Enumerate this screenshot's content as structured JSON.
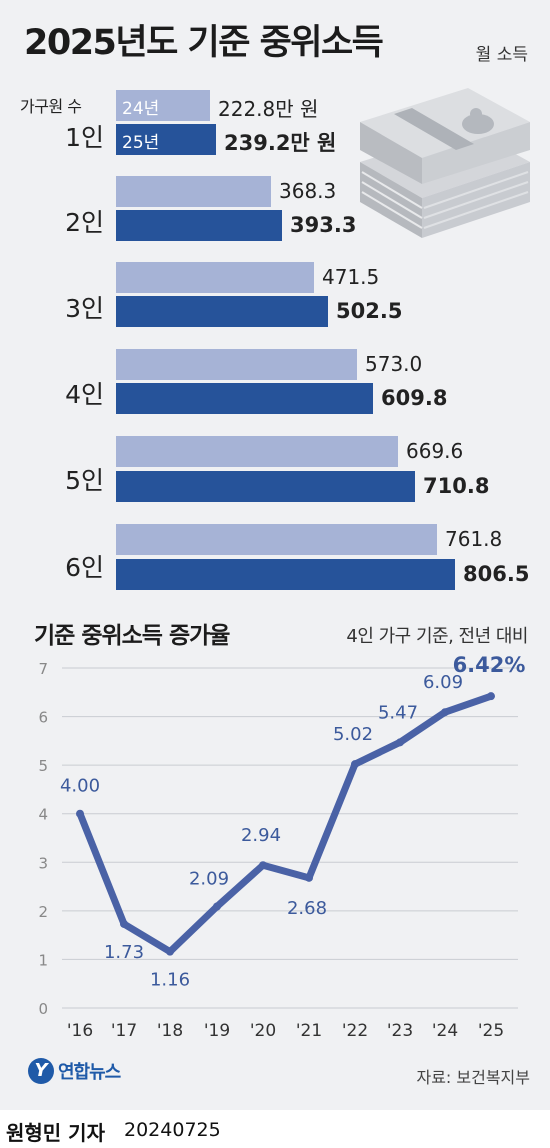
{
  "header": {
    "title": "2025년도 기준 중위소득",
    "unit": "월 소득",
    "household_label": "가구원 수",
    "prev_tag": "24년",
    "cur_tag": "25년"
  },
  "bars": [
    {
      "label": "1인",
      "prev": "222.8만 원",
      "cur": "239.2만 원"
    },
    {
      "label": "2인",
      "prev": "368.3",
      "cur": "393.3"
    },
    {
      "label": "3인",
      "prev": "471.5",
      "cur": "502.5"
    },
    {
      "label": "4인",
      "prev": "573.0",
      "cur": "609.8"
    },
    {
      "label": "5인",
      "prev": "669.6",
      "cur": "710.8"
    },
    {
      "label": "6인",
      "prev": "761.8",
      "cur": "806.5"
    }
  ],
  "line_section": {
    "title": "기준 중위소득 증가율",
    "subtitle": "4인 가구 기준, 전년 대비"
  },
  "chart_data": [
    {
      "type": "bar",
      "categories": [
        "1인",
        "2인",
        "3인",
        "4인",
        "5인",
        "6인"
      ],
      "series": [
        {
          "name": "24년",
          "values": [
            222.8,
            368.3,
            471.5,
            573.0,
            669.6,
            761.8
          ]
        },
        {
          "name": "25년",
          "values": [
            239.2,
            393.3,
            502.5,
            609.8,
            710.8,
            806.5
          ]
        }
      ],
      "title": "2025년도 기준 중위소득",
      "xlabel": "가구원 수",
      "ylabel": "",
      "orientation": "horizontal",
      "colors": {
        "24년": "#a6b3d6",
        "25년": "#26539a"
      }
    },
    {
      "type": "line",
      "x": [
        "'16",
        "'17",
        "'18",
        "'19",
        "'20",
        "'21",
        "'22",
        "'23",
        "'24",
        "'25"
      ],
      "series": [
        {
          "values": [
            4.0,
            1.73,
            1.16,
            2.09,
            2.94,
            2.68,
            5.02,
            5.47,
            6.09,
            6.42
          ]
        }
      ],
      "labels": [
        "4.00",
        "1.73",
        "1.16",
        "2.09",
        "2.94",
        "2.68",
        "5.02",
        "5.47",
        "6.09",
        "6.42%"
      ],
      "yticks": [
        "0",
        "1",
        "2",
        "3",
        "4",
        "5",
        "6",
        "7"
      ],
      "title": "기준 중위소득 증가율",
      "subtitle": "4인 가구 기준, 전년 대비",
      "ylim": [
        0,
        7
      ],
      "grid": true,
      "color": "#4a62a6"
    }
  ],
  "footer": {
    "logo_mark": "Y",
    "logo_text": "연합뉴스",
    "source": "자료: 보건복지부",
    "reporter": "원형민 기자",
    "date": "20240725"
  },
  "colors": {
    "background": "#f0f1f3",
    "bar_prev": "#a6b3d6",
    "bar_cur": "#26539a",
    "line": "#4a62a6",
    "label": "#3c5a9c"
  }
}
